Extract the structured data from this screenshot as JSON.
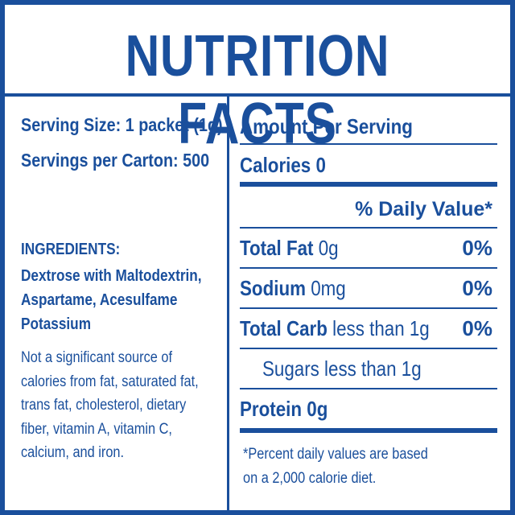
{
  "title": "NUTRITION FACTS",
  "left": {
    "serving_size": "Serving Size: 1 packet (1g)",
    "servings_per_carton": "Servings per Carton: 500",
    "ingredients_heading": "INGREDIENTS:",
    "ingredients_lines": [
      "Dextrose with Maltodextrin,",
      "Aspartame, Acesulfame",
      "Potassium"
    ],
    "note_lines": [
      "Not a significant source of",
      "calories from fat, saturated fat,",
      "trans fat, cholesterol, dietary",
      "fiber, vitamin A, vitamin C,",
      "calcium, and iron."
    ]
  },
  "right": {
    "amount_per_serving": "Amount Per Serving",
    "calories_label": "Calories",
    "calories_value": "0",
    "daily_value_heading": "% Daily Value*",
    "rows": [
      {
        "label": "Total Fat",
        "amount": "0g",
        "dv": "0%"
      },
      {
        "label": "Sodium",
        "amount": "0mg",
        "dv": "0%"
      },
      {
        "label": "Total Carb",
        "amount": "less than 1g",
        "dv": "0%"
      }
    ],
    "sugars": "Sugars less than 1g",
    "protein_label": "Protein",
    "protein_value": "0g",
    "footnote_lines": [
      "*Percent daily values are based",
      "on a 2,000 calorie diet."
    ]
  },
  "colors": {
    "brand_blue": "#1a4f9c",
    "background": "#ffffff"
  }
}
